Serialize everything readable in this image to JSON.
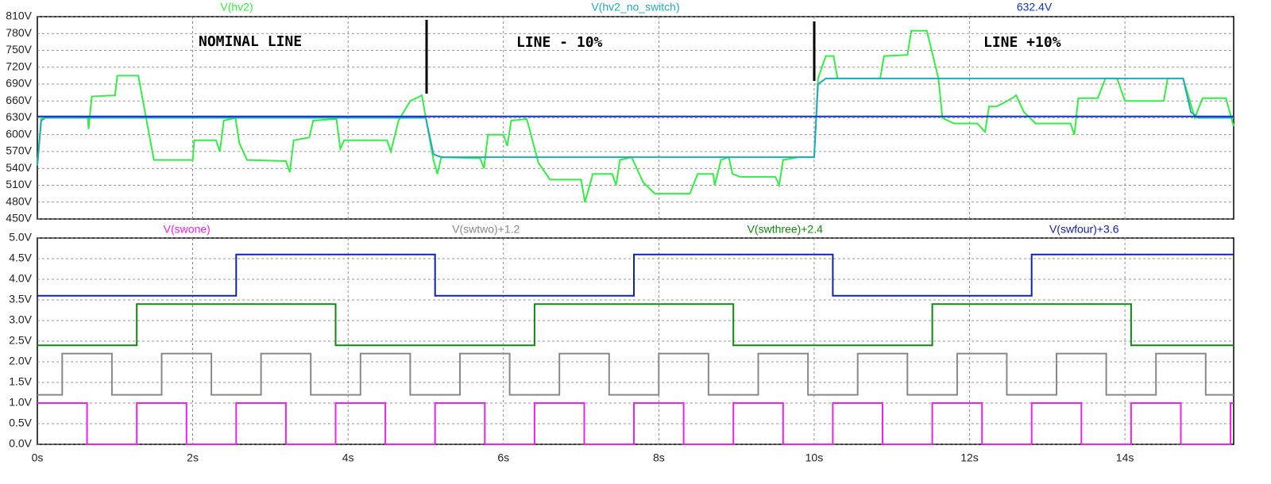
{
  "chart_data": [
    {
      "type": "line",
      "annotations": [
        "NOMINAL LINE",
        "LINE - 10%",
        "LINE +10%"
      ],
      "xlim": [
        0,
        15.4
      ],
      "ylim": [
        450,
        810
      ],
      "yticks": [
        {
          "value": 450,
          "label": "450V"
        },
        {
          "value": 480,
          "label": "480V"
        },
        {
          "value": 510,
          "label": "510V"
        },
        {
          "value": 540,
          "label": "540V"
        },
        {
          "value": 570,
          "label": "570V"
        },
        {
          "value": 600,
          "label": "600V"
        },
        {
          "value": 630,
          "label": "630V"
        },
        {
          "value": 660,
          "label": "660V"
        },
        {
          "value": 690,
          "label": "690V"
        },
        {
          "value": 720,
          "label": "720V"
        },
        {
          "value": 750,
          "label": "750V"
        },
        {
          "value": 780,
          "label": "780V"
        },
        {
          "value": 810,
          "label": "810V"
        }
      ],
      "grid": true,
      "series": [
        {
          "name": "V(hv2)",
          "color": "#33ee44",
          "x": [
            0,
            0.05,
            0.65,
            0.66,
            0.7,
            1.0,
            1.03,
            1.3,
            1.4,
            1.5,
            2.0,
            2.02,
            2.3,
            2.35,
            2.4,
            2.55,
            2.6,
            2.7,
            3.2,
            3.25,
            3.3,
            3.5,
            3.55,
            3.85,
            3.9,
            3.95,
            4.5,
            4.55,
            4.65,
            4.8,
            4.95,
            5.0,
            5.1,
            5.15,
            5.2,
            5.7,
            5.75,
            5.8,
            6.0,
            6.05,
            6.1,
            6.3,
            6.45,
            6.6,
            7.0,
            7.05,
            7.15,
            7.4,
            7.45,
            7.5,
            7.65,
            7.8,
            7.95,
            8.4,
            8.5,
            8.7,
            8.72,
            8.8,
            8.9,
            8.95,
            9.05,
            9.5,
            9.55,
            9.6,
            9.8,
            10.0,
            10.05,
            10.15,
            10.25,
            10.3,
            10.85,
            10.9,
            11.2,
            11.25,
            11.45,
            11.6,
            11.65,
            11.8,
            12.1,
            12.2,
            12.25,
            12.35,
            12.55,
            12.6,
            12.7,
            12.85,
            13.3,
            13.35,
            13.4,
            13.65,
            13.75,
            13.9,
            14.0,
            14.5,
            14.55,
            14.75,
            14.9,
            15.0,
            15.3,
            15.4
          ],
          "values": [
            545,
            630,
            630,
            610,
            668,
            670,
            705,
            705,
            630,
            555,
            555,
            590,
            590,
            570,
            625,
            630,
            585,
            555,
            553,
            533,
            590,
            595,
            625,
            628,
            575,
            590,
            590,
            570,
            625,
            660,
            670,
            630,
            555,
            530,
            560,
            558,
            540,
            600,
            600,
            580,
            625,
            628,
            550,
            520,
            520,
            480,
            530,
            530,
            510,
            555,
            560,
            515,
            495,
            495,
            530,
            530,
            510,
            555,
            560,
            530,
            525,
            525,
            510,
            555,
            560,
            560,
            700,
            740,
            740,
            700,
            700,
            740,
            742,
            785,
            785,
            700,
            630,
            620,
            620,
            605,
            650,
            650,
            665,
            670,
            640,
            620,
            620,
            600,
            665,
            665,
            700,
            700,
            660,
            660,
            700,
            700,
            630,
            665,
            665,
            615
          ]
        },
        {
          "name": "V(hv2_no_switch)",
          "color": "#22aabb",
          "x": [
            0,
            0.05,
            0.1,
            5.0,
            5.1,
            5.2,
            10.0,
            10.05,
            10.15,
            14.75,
            14.85,
            14.95,
            15.4
          ],
          "values": [
            545,
            625,
            630,
            630,
            565,
            560,
            560,
            690,
            700,
            700,
            640,
            630,
            630
          ]
        },
        {
          "name": "632.4V",
          "color": "#1133cc",
          "x": [
            0,
            15.4
          ],
          "values": [
            632.4,
            632.4
          ]
        }
      ]
    },
    {
      "type": "line",
      "xlim": [
        0,
        15.4
      ],
      "ylim": [
        0,
        5
      ],
      "xticks": [
        {
          "value": 0,
          "label": "0s"
        },
        {
          "value": 2,
          "label": "2s"
        },
        {
          "value": 4,
          "label": "4s"
        },
        {
          "value": 6,
          "label": "6s"
        },
        {
          "value": 8,
          "label": "8s"
        },
        {
          "value": 10,
          "label": "10s"
        },
        {
          "value": 12,
          "label": "12s"
        },
        {
          "value": 14,
          "label": "14s"
        }
      ],
      "yticks": [
        {
          "value": 0,
          "label": "0.0V"
        },
        {
          "value": 0.5,
          "label": "0.5V"
        },
        {
          "value": 1,
          "label": "1.0V"
        },
        {
          "value": 1.5,
          "label": "1.5V"
        },
        {
          "value": 2,
          "label": "2.0V"
        },
        {
          "value": 2.5,
          "label": "2.5V"
        },
        {
          "value": 3,
          "label": "3.0V"
        },
        {
          "value": 3.5,
          "label": "3.5V"
        },
        {
          "value": 4,
          "label": "4.0V"
        },
        {
          "value": 4.5,
          "label": "4.5V"
        },
        {
          "value": 5,
          "label": "5.0V"
        }
      ],
      "grid": true,
      "series": [
        {
          "name": "V(swone)",
          "color": "#ee22ee",
          "x": [
            0,
            0.64,
            0.64,
            1.28,
            1.28,
            1.92,
            1.92,
            2.56,
            2.56,
            3.2,
            3.2,
            3.84,
            3.84,
            4.48,
            4.48,
            5.12,
            5.12,
            5.76,
            5.76,
            6.4,
            6.4,
            7.04,
            7.04,
            7.68,
            7.68,
            8.32,
            8.32,
            8.96,
            8.96,
            9.6,
            9.6,
            10.24,
            10.24,
            10.88,
            10.88,
            11.52,
            11.52,
            12.16,
            12.16,
            12.8,
            12.8,
            13.44,
            13.44,
            14.08,
            14.08,
            14.72,
            14.72,
            15.36,
            15.36,
            15.4
          ],
          "values": [
            1,
            1,
            0,
            0,
            1,
            1,
            0,
            0,
            1,
            1,
            0,
            0,
            1,
            1,
            0,
            0,
            1,
            1,
            0,
            0,
            1,
            1,
            0,
            0,
            1,
            1,
            0,
            0,
            1,
            1,
            0,
            0,
            1,
            1,
            0,
            0,
            1,
            1,
            0,
            0,
            1,
            1,
            0,
            0,
            1,
            1,
            0,
            0,
            1,
            1
          ]
        },
        {
          "name": "V(swtwo)+1.2",
          "color": "#888888",
          "x": [
            0,
            0.32,
            0.32,
            0.96,
            0.96,
            1.6,
            1.6,
            2.24,
            2.24,
            2.88,
            2.88,
            3.52,
            3.52,
            4.16,
            4.16,
            4.8,
            4.8,
            5.44,
            5.44,
            6.08,
            6.08,
            6.72,
            6.72,
            7.36,
            7.36,
            8.0,
            8.0,
            8.64,
            8.64,
            9.28,
            9.28,
            9.92,
            9.92,
            10.56,
            10.56,
            11.2,
            11.2,
            11.84,
            11.84,
            12.48,
            12.48,
            13.12,
            13.12,
            13.76,
            13.76,
            14.4,
            14.4,
            15.04,
            15.04,
            15.4
          ],
          "values": [
            1.2,
            1.2,
            2.2,
            2.2,
            1.2,
            1.2,
            2.2,
            2.2,
            1.2,
            1.2,
            2.2,
            2.2,
            1.2,
            1.2,
            2.2,
            2.2,
            1.2,
            1.2,
            2.2,
            2.2,
            1.2,
            1.2,
            2.2,
            2.2,
            1.2,
            1.2,
            2.2,
            2.2,
            1.2,
            1.2,
            2.2,
            2.2,
            1.2,
            1.2,
            2.2,
            2.2,
            1.2,
            1.2,
            2.2,
            2.2,
            1.2,
            1.2,
            2.2,
            2.2,
            1.2,
            1.2,
            2.2,
            2.2,
            1.2,
            1.2
          ]
        },
        {
          "name": "V(swthree)+2.4",
          "color": "#118811",
          "x": [
            0,
            1.28,
            1.28,
            3.84,
            3.84,
            6.4,
            6.4,
            8.96,
            8.96,
            11.52,
            11.52,
            14.08,
            14.08,
            15.4
          ],
          "values": [
            2.4,
            2.4,
            3.4,
            3.4,
            2.4,
            2.4,
            3.4,
            3.4,
            2.4,
            2.4,
            3.4,
            3.4,
            2.4,
            2.4
          ]
        },
        {
          "name": "V(swfour)+3.6",
          "color": "#1122aa",
          "x": [
            0,
            2.56,
            2.56,
            5.12,
            5.12,
            7.68,
            7.68,
            10.24,
            10.24,
            12.8,
            12.8,
            15.4
          ],
          "values": [
            3.6,
            3.6,
            4.6,
            4.6,
            3.6,
            3.6,
            4.6,
            4.6,
            3.6,
            3.6,
            4.6,
            4.6
          ]
        }
      ]
    }
  ]
}
